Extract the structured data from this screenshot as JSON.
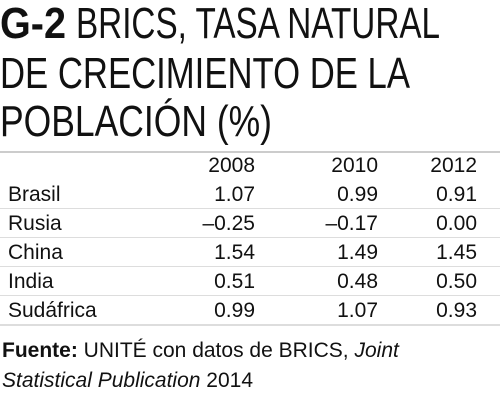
{
  "title": {
    "label": "G-2",
    "lines": [
      "BRICS, TASA NATURAL",
      "DE CRECIMIENTO DE LA",
      "POBLACIÓN (%)"
    ]
  },
  "table": {
    "columns": [
      "2008",
      "2010",
      "2012"
    ],
    "rows": [
      [
        "Brasil",
        "1.07",
        "0.99",
        "0.91"
      ],
      [
        "Rusia",
        "–0.25",
        "–0.17",
        "0.00"
      ],
      [
        "China",
        "1.54",
        "1.49",
        "1.45"
      ],
      [
        "India",
        "0.51",
        "0.48",
        "0.50"
      ],
      [
        "Sudáfrica",
        "0.99",
        "1.07",
        "0.93"
      ]
    ]
  },
  "source": {
    "label": "Fuente:",
    "text": "UNITÉ con datos de BRICS,",
    "publication": "Joint Statistical Publication",
    "year": "2014"
  }
}
